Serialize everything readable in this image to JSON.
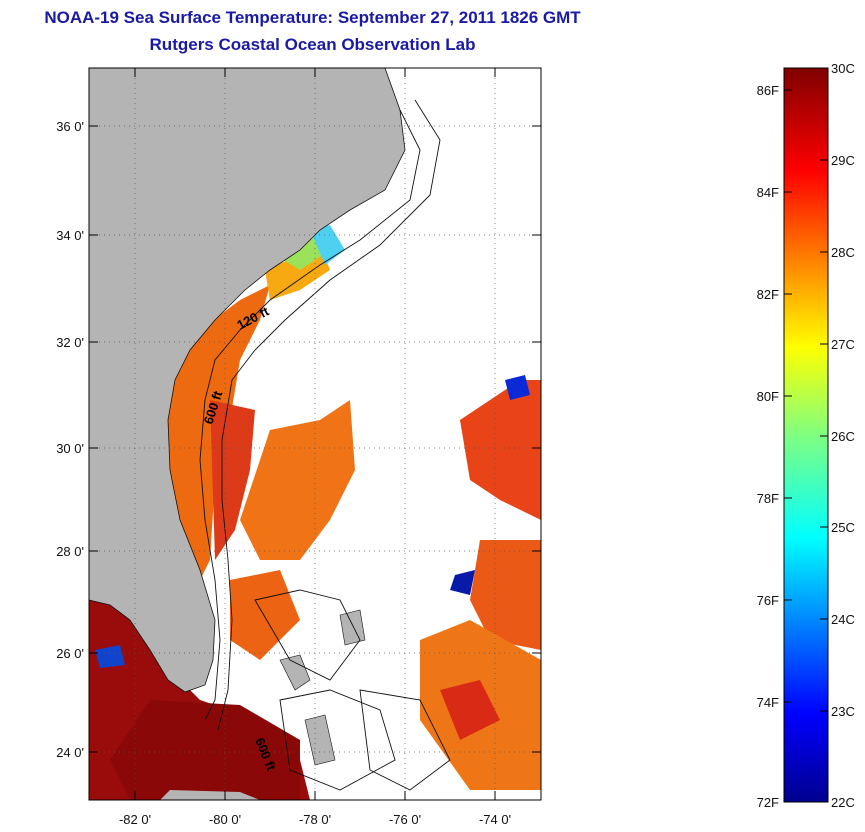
{
  "map": {
    "title": "NOAA-19 Sea Surface Temperature:  September 27, 2011 1826 GMT",
    "subtitle": "Rutgers Coastal Ocean Observation Lab",
    "lat_labels": [
      "36 0'",
      "34 0'",
      "32 0'",
      "30 0'",
      "28 0'",
      "26 0'",
      "24 0'"
    ],
    "lon_labels": [
      "-82 0'",
      "-80 0'",
      "-78 0'",
      "-76 0'",
      "-74 0'"
    ],
    "contour_labels": [
      "120 ft",
      "600 ft",
      "600 ft"
    ],
    "lat_range": [
      23,
      37
    ],
    "lon_range": [
      -83,
      -73
    ],
    "land_color": "#b4b4b4",
    "cloud_color": "#ffffff"
  },
  "colorbar": {
    "f_labels": [
      "86F",
      "84F",
      "82F",
      "80F",
      "78F",
      "76F",
      "74F",
      "72F"
    ],
    "c_labels": [
      "30C",
      "29C",
      "28C",
      "27C",
      "26C",
      "25C",
      "24C",
      "23C",
      "22C"
    ],
    "range_c": [
      22,
      30
    ],
    "colormap": "jet"
  }
}
